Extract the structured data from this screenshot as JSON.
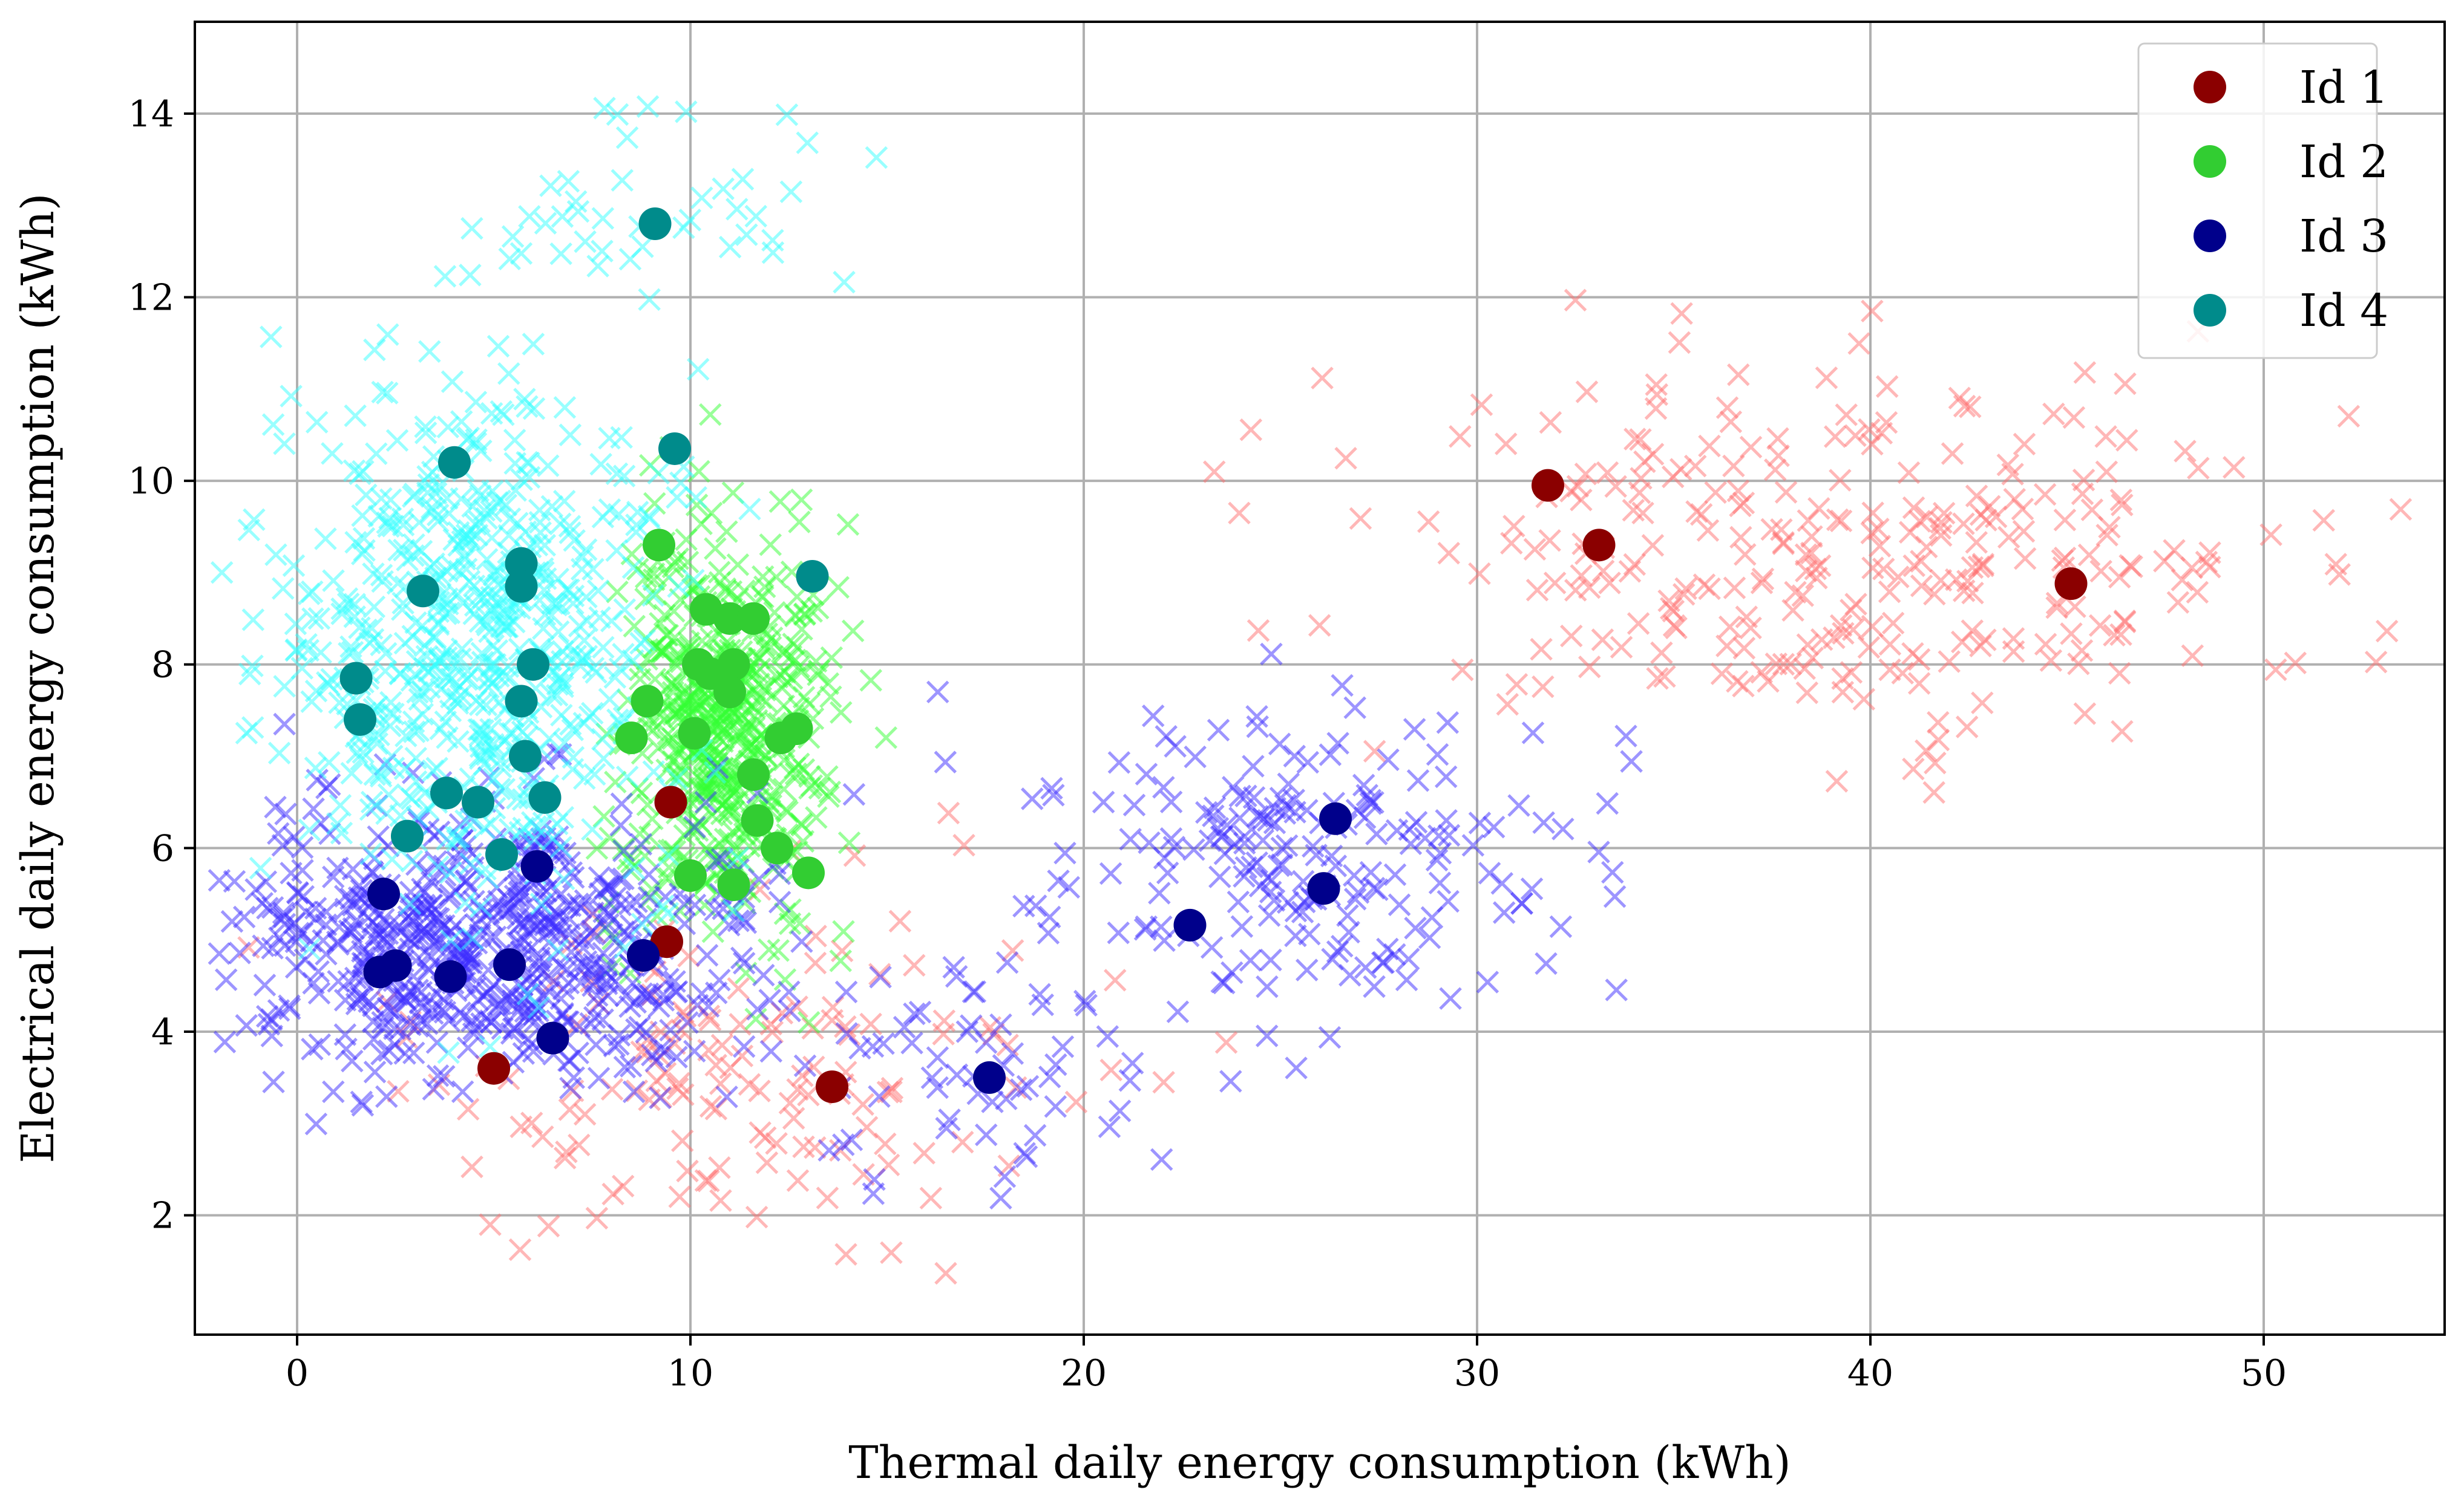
{
  "chart_data": {
    "type": "scatter",
    "title": "",
    "xlabel": "Thermal daily energy consumption (kWh)",
    "ylabel": "Electrical daily energy consumption (kWh)",
    "xlim": [
      -2.6,
      54.6
    ],
    "ylim": [
      0.7,
      15.0
    ],
    "xticks": [
      0,
      10,
      20,
      30,
      40,
      50
    ],
    "yticks": [
      2,
      4,
      6,
      8,
      10,
      12,
      14
    ],
    "grid": true,
    "legend_position": "top-right",
    "series": [
      {
        "name": "Id 1",
        "color": "#8b0000",
        "cloud_color": "#ff6f6f",
        "points": [
          [
            31.8,
            9.95
          ],
          [
            33.1,
            9.3
          ],
          [
            45.1,
            8.88
          ],
          [
            9.5,
            6.5
          ],
          [
            9.4,
            4.98
          ],
          [
            5.0,
            3.6
          ],
          [
            13.6,
            3.4
          ]
        ],
        "clouds": [
          {
            "cx": 39.0,
            "cy": 9.2,
            "sx": 6.0,
            "sy": 1.0,
            "n": 300
          },
          {
            "cx": 10.5,
            "cy": 3.4,
            "sx": 4.5,
            "sy": 0.9,
            "n": 130
          },
          {
            "cx": 15.5,
            "cy": 5.0,
            "sx": 1.5,
            "sy": 1.5,
            "n": 14
          }
        ]
      },
      {
        "name": "Id 2",
        "color": "#32cd32",
        "cloud_color": "#33ff33",
        "points": [
          [
            9.2,
            9.3
          ],
          [
            10.4,
            8.6
          ],
          [
            11.0,
            8.5
          ],
          [
            11.6,
            8.5
          ],
          [
            10.2,
            8.0
          ],
          [
            10.5,
            7.9
          ],
          [
            11.1,
            8.0
          ],
          [
            8.9,
            7.6
          ],
          [
            11.0,
            7.7
          ],
          [
            8.5,
            7.2
          ],
          [
            10.1,
            7.25
          ],
          [
            12.3,
            7.2
          ],
          [
            12.7,
            7.3
          ],
          [
            11.6,
            6.8
          ],
          [
            11.7,
            6.3
          ],
          [
            12.2,
            6.0
          ],
          [
            10.0,
            5.7
          ],
          [
            11.1,
            5.6
          ],
          [
            13.0,
            5.73
          ]
        ],
        "clouds": [
          {
            "cx": 10.8,
            "cy": 7.3,
            "sx": 1.3,
            "sy": 1.1,
            "n": 520
          }
        ]
      },
      {
        "name": "Id 3",
        "color": "#00008b",
        "cloud_color": "#3b2bff",
        "points": [
          [
            2.2,
            5.5
          ],
          [
            6.1,
            5.8
          ],
          [
            2.1,
            4.65
          ],
          [
            2.5,
            4.72
          ],
          [
            3.9,
            4.6
          ],
          [
            5.4,
            4.73
          ],
          [
            8.8,
            4.83
          ],
          [
            6.5,
            3.93
          ],
          [
            17.6,
            3.5
          ],
          [
            22.7,
            5.16
          ],
          [
            26.1,
            5.56
          ],
          [
            26.4,
            6.32
          ]
        ],
        "clouds": [
          {
            "cx": 5.0,
            "cy": 4.9,
            "sx": 3.4,
            "sy": 0.75,
            "n": 620
          },
          {
            "cx": 25.5,
            "cy": 5.9,
            "sx": 3.4,
            "sy": 0.8,
            "n": 200
          },
          {
            "cx": 17.5,
            "cy": 3.8,
            "sx": 2.8,
            "sy": 0.8,
            "n": 70
          }
        ]
      },
      {
        "name": "Id 4",
        "color": "#008b8b",
        "cloud_color": "#33ffff",
        "points": [
          [
            9.1,
            12.8
          ],
          [
            4.0,
            10.2
          ],
          [
            9.6,
            10.35
          ],
          [
            5.7,
            9.1
          ],
          [
            5.7,
            8.85
          ],
          [
            3.2,
            8.8
          ],
          [
            13.1,
            8.96
          ],
          [
            6.0,
            8.0
          ],
          [
            1.5,
            7.85
          ],
          [
            5.7,
            7.6
          ],
          [
            1.6,
            7.4
          ],
          [
            5.8,
            7.0
          ],
          [
            3.8,
            6.6
          ],
          [
            4.6,
            6.5
          ],
          [
            6.3,
            6.55
          ],
          [
            2.8,
            6.13
          ],
          [
            5.2,
            5.93
          ]
        ],
        "clouds": [
          {
            "cx": 4.6,
            "cy": 8.1,
            "sx": 2.5,
            "sy": 1.4,
            "n": 600
          },
          {
            "cx": 9.0,
            "cy": 12.9,
            "sx": 2.3,
            "sy": 0.6,
            "n": 45
          }
        ]
      }
    ]
  }
}
